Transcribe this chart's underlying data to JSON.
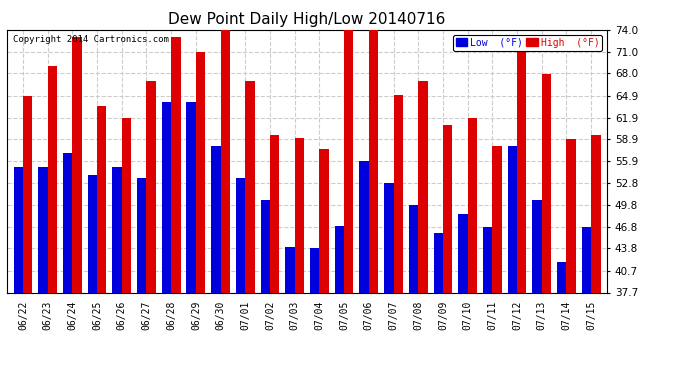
{
  "title": "Dew Point Daily High/Low 20140716",
  "copyright": "Copyright 2014 Cartronics.com",
  "dates": [
    "06/22",
    "06/23",
    "06/24",
    "06/25",
    "06/26",
    "06/27",
    "06/28",
    "06/29",
    "06/30",
    "07/01",
    "07/02",
    "07/03",
    "07/04",
    "07/05",
    "07/06",
    "07/07",
    "07/08",
    "07/09",
    "07/10",
    "07/11",
    "07/12",
    "07/13",
    "07/14",
    "07/15"
  ],
  "high": [
    64.9,
    69.0,
    73.0,
    63.5,
    61.9,
    66.9,
    73.0,
    71.0,
    74.0,
    66.9,
    59.5,
    59.0,
    57.5,
    74.0,
    74.0,
    65.0,
    66.9,
    60.9,
    61.9,
    57.9,
    73.0,
    67.9,
    58.9,
    59.5
  ],
  "low": [
    55.0,
    55.0,
    57.0,
    54.0,
    55.0,
    53.5,
    64.0,
    64.0,
    57.9,
    53.5,
    50.5,
    44.0,
    43.8,
    46.9,
    55.9,
    52.8,
    49.8,
    45.9,
    48.5,
    46.8,
    57.9,
    50.5,
    41.9,
    46.8
  ],
  "ylim": [
    37.7,
    74.0
  ],
  "yticks": [
    37.7,
    40.7,
    43.8,
    46.8,
    49.8,
    52.8,
    55.9,
    58.9,
    61.9,
    64.9,
    68.0,
    71.0,
    74.0
  ],
  "bar_width": 0.38,
  "low_color": "#0000dd",
  "high_color": "#dd0000",
  "bg_color": "#ffffff",
  "plot_bg_color": "#ffffff",
  "grid_color": "#cccccc",
  "title_fontsize": 11,
  "legend_low_label": "Low  (°F)",
  "legend_high_label": "High  (°F)"
}
